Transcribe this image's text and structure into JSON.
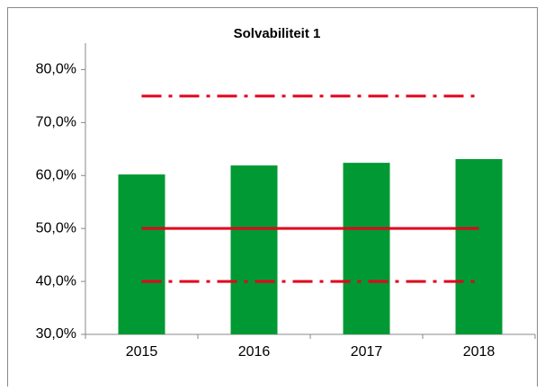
{
  "chart_data": {
    "type": "bar",
    "title": "Solvabiliteit 1",
    "categories": [
      "2015",
      "2016",
      "2017",
      "2018"
    ],
    "values": [
      60.2,
      61.9,
      62.4,
      63.1
    ],
    "color": "#009933",
    "ylim": [
      30,
      85
    ],
    "yticks": [
      {
        "value": 30,
        "label": "30,0%"
      },
      {
        "value": 40,
        "label": "40,0%"
      },
      {
        "value": 50,
        "label": "50,0%"
      },
      {
        "value": 60,
        "label": "60,0%"
      },
      {
        "value": 70,
        "label": "70,0%"
      },
      {
        "value": 80,
        "label": "80,0%"
      }
    ],
    "reference_lines": [
      {
        "value": 75,
        "style": "dashdot",
        "color": "#e3001b"
      },
      {
        "value": 50,
        "style": "solid",
        "color": "#e3001b"
      },
      {
        "value": 40,
        "style": "dashdot",
        "color": "#e3001b"
      }
    ],
    "grid": false
  }
}
